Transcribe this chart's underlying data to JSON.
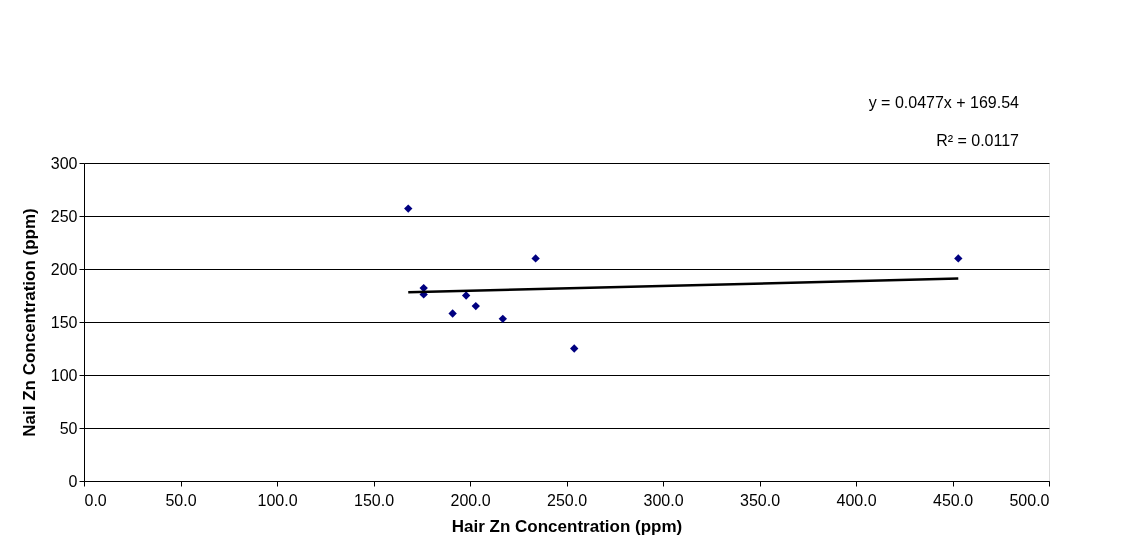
{
  "chart_data": {
    "type": "scatter",
    "xlabel": "Hair Zn Concentration (ppm)",
    "ylabel": "Nail Zn Concentration (ppm)",
    "xlim": [
      0,
      500
    ],
    "xticks": [
      {
        "value": 0,
        "label": "0.0"
      },
      {
        "value": 50,
        "label": "50.0"
      },
      {
        "value": 100,
        "label": "100.0"
      },
      {
        "value": 150,
        "label": "150.0"
      },
      {
        "value": 200,
        "label": "200.0"
      },
      {
        "value": 250,
        "label": "250.0"
      },
      {
        "value": 300,
        "label": "300.0"
      },
      {
        "value": 350,
        "label": "350.0"
      },
      {
        "value": 400,
        "label": "400.0"
      },
      {
        "value": 450,
        "label": "450.0"
      },
      {
        "value": 500,
        "label": "500.0"
      }
    ],
    "ylim": [
      0,
      300
    ],
    "yticks": [
      0,
      50,
      100,
      150,
      200,
      250,
      300
    ],
    "grid": "y",
    "series": [
      {
        "color": "#000080",
        "marker": "diamond",
        "x": [
          168,
          234,
          176,
          176,
          191,
          198,
          203,
          217,
          254,
          453
        ],
        "values": [
          257,
          210,
          182,
          176,
          158,
          175,
          165,
          153,
          125,
          210
        ]
      },
      {
        "type": "line",
        "color": "#000000",
        "x": [
          168,
          453
        ],
        "values": [
          178,
          191
        ]
      }
    ],
    "annotations": [
      "y = 0.0477x + 169.54",
      "R² = 0.0117"
    ]
  }
}
